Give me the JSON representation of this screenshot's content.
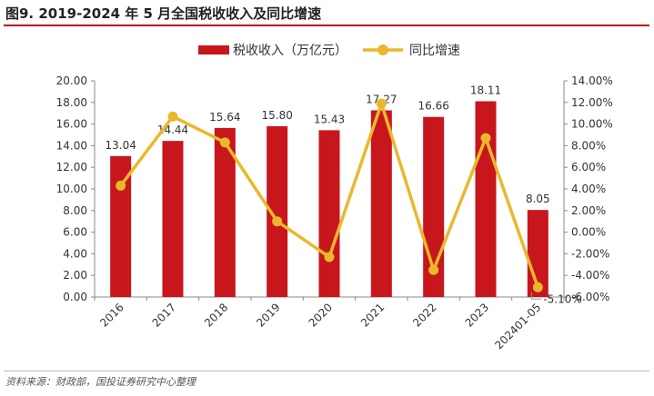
{
  "figure": {
    "title": "图9. 2019-2024 年 5 月全国税收收入及同比增速",
    "source": "资料来源：财政部，国投证券研究中心整理"
  },
  "colors": {
    "bar": "#c8161d",
    "line": "#eab82d",
    "axis": "#888888",
    "text": "#333333"
  },
  "chart_data": {
    "type": "bar+line",
    "categories": [
      "2016",
      "2017",
      "2018",
      "2019",
      "2020",
      "2021",
      "2022",
      "2023",
      "202401-05"
    ],
    "series": [
      {
        "name": "税收收入（万亿元）",
        "type": "bar",
        "axis": "left",
        "values": [
          13.04,
          14.44,
          15.64,
          15.8,
          15.43,
          17.27,
          16.66,
          18.11,
          8.05
        ],
        "labels": [
          "13.04",
          "14.44",
          "15.64",
          "15.80",
          "15.43",
          "17.27",
          "16.66",
          "18.11",
          "8.05"
        ]
      },
      {
        "name": "同比增速",
        "type": "line",
        "axis": "right",
        "values": [
          4.3,
          10.7,
          8.3,
          1.0,
          -2.3,
          11.9,
          -3.5,
          8.7,
          -5.1
        ],
        "labels": [
          "",
          "",
          "",
          "",
          "",
          "",
          "",
          "",
          "-5.10%"
        ]
      }
    ],
    "y_left": {
      "min": 0,
      "max": 20,
      "step": 2,
      "ticks": [
        "0.00",
        "2.00",
        "4.00",
        "6.00",
        "8.00",
        "10.00",
        "12.00",
        "14.00",
        "16.00",
        "18.00",
        "20.00"
      ]
    },
    "y_right": {
      "min": -6,
      "max": 14,
      "step": 2,
      "ticks": [
        "-6.00%",
        "-4.00%",
        "-2.00%",
        "0.00%",
        "2.00%",
        "4.00%",
        "6.00%",
        "8.00%",
        "10.00%",
        "12.00%",
        "14.00%"
      ]
    },
    "legend_position": "top-center",
    "grid": false
  }
}
